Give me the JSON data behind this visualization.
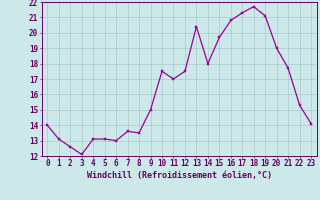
{
  "x": [
    0,
    1,
    2,
    3,
    4,
    5,
    6,
    7,
    8,
    9,
    10,
    11,
    12,
    13,
    14,
    15,
    16,
    17,
    18,
    19,
    20,
    21,
    22,
    23
  ],
  "y": [
    14.0,
    13.1,
    12.6,
    12.1,
    13.1,
    13.1,
    13.0,
    13.6,
    13.5,
    15.0,
    17.5,
    17.0,
    17.5,
    20.4,
    18.0,
    19.7,
    20.8,
    21.3,
    21.7,
    21.1,
    19.0,
    17.7,
    15.3,
    14.1
  ],
  "line_color": "#990099",
  "marker_color": "#990099",
  "bg_color": "#cce8e8",
  "grid_color": "#aacccc",
  "text_color": "#660066",
  "xlabel": "Windchill (Refroidissement éolien,°C)",
  "ylim": [
    12,
    22
  ],
  "xlim": [
    -0.5,
    23.5
  ],
  "yticks": [
    12,
    13,
    14,
    15,
    16,
    17,
    18,
    19,
    20,
    21,
    22
  ],
  "xticks": [
    0,
    1,
    2,
    3,
    4,
    5,
    6,
    7,
    8,
    9,
    10,
    11,
    12,
    13,
    14,
    15,
    16,
    17,
    18,
    19,
    20,
    21,
    22,
    23
  ],
  "tick_fontsize": 5.5,
  "label_fontsize": 6.0
}
